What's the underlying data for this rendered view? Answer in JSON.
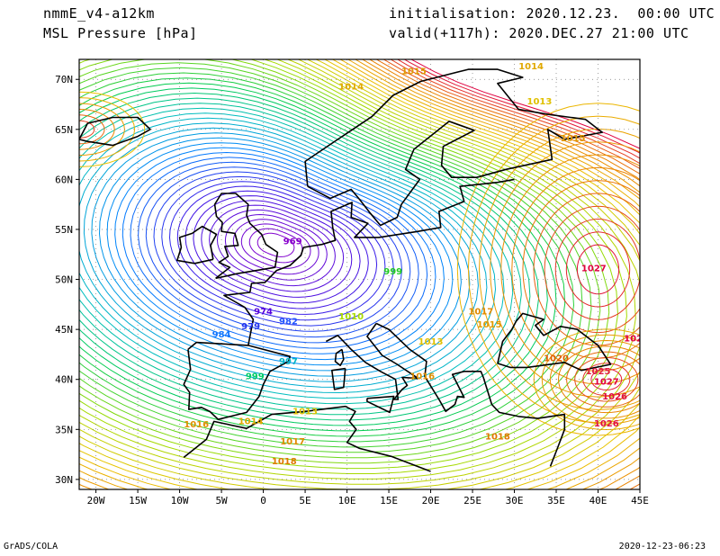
{
  "header": {
    "model": "nmmE_v4-a12km",
    "field": "MSL Pressure [hPa]",
    "initialisation": "initialisation: 2020.12.23.  00:00 UTC",
    "valid": "valid(+117h): 2020.DEC.27 21:00 UTC"
  },
  "footer": {
    "credit": "GrADS/COLA",
    "timestamp": "2020-12-23-06:23"
  },
  "map": {
    "lon_range": [
      -22,
      45
    ],
    "lat_range": [
      29,
      72
    ],
    "lon_ticks": [
      "20W",
      "15W",
      "10W",
      "5W",
      "0",
      "5E",
      "10E",
      "15E",
      "20E",
      "25E",
      "30E",
      "35E",
      "40E",
      "45E"
    ],
    "lat_ticks": [
      "70N",
      "65N",
      "60N",
      "55N",
      "50N",
      "45N",
      "40N",
      "35N",
      "30N"
    ],
    "isobar_labels": [
      {
        "text": "969",
        "lon": 3.5,
        "lat": 53.5,
        "color": "#8800cc"
      },
      {
        "text": "974",
        "lon": 0,
        "lat": 46.5,
        "color": "#5500dd"
      },
      {
        "text": "979",
        "lon": -1.5,
        "lat": 45.0,
        "color": "#2233ee"
      },
      {
        "text": "982",
        "lon": 3,
        "lat": 45.5,
        "color": "#2255ff"
      },
      {
        "text": "984",
        "lon": -5,
        "lat": 44.2,
        "color": "#1177ff"
      },
      {
        "text": "997",
        "lon": 3,
        "lat": 41.5,
        "color": "#00b4c8"
      },
      {
        "text": "999",
        "lon": -1,
        "lat": 40,
        "color": "#00cc66"
      },
      {
        "text": "999",
        "lon": 15.5,
        "lat": 50.5,
        "color": "#22cc22"
      },
      {
        "text": "1010",
        "lon": 10.5,
        "lat": 46.0,
        "color": "#aadd00"
      },
      {
        "text": "1013",
        "lon": 5,
        "lat": 36.5,
        "color": "#e0c000"
      },
      {
        "text": "1013",
        "lon": 20,
        "lat": 43.5,
        "color": "#e0c000"
      },
      {
        "text": "1014",
        "lon": -1.5,
        "lat": 35.5,
        "color": "#e0a800"
      },
      {
        "text": "1015",
        "lon": 27,
        "lat": 45.2,
        "color": "#e09a00"
      },
      {
        "text": "1016",
        "lon": -8,
        "lat": 35.2,
        "color": "#e09000"
      },
      {
        "text": "1016",
        "lon": 19,
        "lat": 40,
        "color": "#e09000"
      },
      {
        "text": "1017",
        "lon": 26,
        "lat": 46.5,
        "color": "#e08a00"
      },
      {
        "text": "1017",
        "lon": 3.5,
        "lat": 33.5,
        "color": "#e08a00"
      },
      {
        "text": "1018",
        "lon": 2.5,
        "lat": 31.5,
        "color": "#e07800"
      },
      {
        "text": "1018",
        "lon": 28,
        "lat": 34.0,
        "color": "#e07800"
      },
      {
        "text": "1014",
        "lon": 32,
        "lat": 71.0,
        "color": "#e0a800"
      },
      {
        "text": "1014",
        "lon": 10.5,
        "lat": 69.0,
        "color": "#e0a800"
      },
      {
        "text": "1015",
        "lon": 18,
        "lat": 70.5,
        "color": "#e09a00"
      },
      {
        "text": "1013",
        "lon": 33,
        "lat": 67.5,
        "color": "#e0c000"
      },
      {
        "text": "1015",
        "lon": 37,
        "lat": 63.8,
        "color": "#e09a00"
      },
      {
        "text": "1027",
        "lon": 39.5,
        "lat": 50.8,
        "color": "#e00040"
      },
      {
        "text": "1025",
        "lon": 40,
        "lat": 40.5,
        "color": "#e02040"
      },
      {
        "text": "1027",
        "lon": 41,
        "lat": 39.5,
        "color": "#e00040"
      },
      {
        "text": "1026",
        "lon": 42,
        "lat": 38.0,
        "color": "#e01040"
      },
      {
        "text": "1026",
        "lon": 41,
        "lat": 35.3,
        "color": "#e01040"
      },
      {
        "text": "102",
        "lon": 44.2,
        "lat": 43.8,
        "color": "#e00040"
      },
      {
        "text": "1020",
        "lon": 35,
        "lat": 41.8,
        "color": "#e06000"
      }
    ],
    "colors": {
      "low_center": "#8800cc",
      "mid_low": "#0080ff",
      "mid": "#00cc66",
      "mid_high": "#e0c000",
      "high": "#e00040",
      "coast": "#000000"
    }
  }
}
